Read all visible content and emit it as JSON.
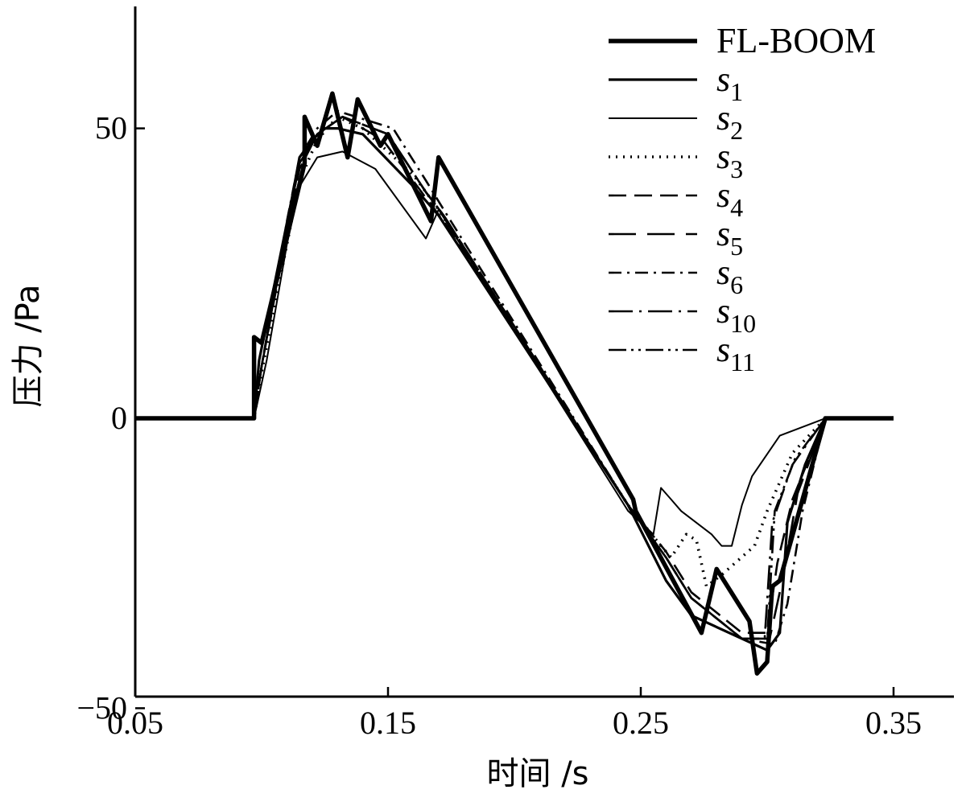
{
  "chart_data": {
    "type": "line",
    "title": "",
    "xlabel": "时间 /s",
    "ylabel": "压力 /Pa",
    "xlim": [
      0.05,
      0.35
    ],
    "ylim": [
      -50,
      70
    ],
    "xticks": [
      0.05,
      0.15,
      0.25,
      0.35
    ],
    "xtick_labels": [
      "0.05",
      "0.15",
      "0.25",
      "0.35"
    ],
    "yticks": [
      -50,
      0,
      50
    ],
    "ytick_labels": [
      "−50",
      "0",
      "50"
    ],
    "grid": false,
    "legend_position": "top-right",
    "series": [
      {
        "name": "FL-BOOM",
        "subscript": "",
        "style": "thick-solid",
        "points": [
          [
            0.05,
            0
          ],
          [
            0.097,
            0
          ],
          [
            0.097,
            14
          ],
          [
            0.1,
            13
          ],
          [
            0.117,
            44
          ],
          [
            0.117,
            52
          ],
          [
            0.122,
            47
          ],
          [
            0.128,
            56
          ],
          [
            0.134,
            45
          ],
          [
            0.138,
            55
          ],
          [
            0.147,
            47
          ],
          [
            0.15,
            49
          ],
          [
            0.167,
            34
          ],
          [
            0.17,
            45
          ],
          [
            0.247,
            -14
          ],
          [
            0.248,
            -16
          ],
          [
            0.274,
            -37
          ],
          [
            0.28,
            -26
          ],
          [
            0.293,
            -35
          ],
          [
            0.296,
            -44
          ],
          [
            0.3,
            -42
          ],
          [
            0.302,
            -29
          ],
          [
            0.305,
            -28
          ],
          [
            0.323,
            0
          ],
          [
            0.35,
            0
          ]
        ]
      },
      {
        "name": "s",
        "subscript": "1",
        "style": "medium-solid",
        "points": [
          [
            0.05,
            0
          ],
          [
            0.097,
            0
          ],
          [
            0.099,
            10
          ],
          [
            0.112,
            38
          ],
          [
            0.115,
            45
          ],
          [
            0.12,
            48
          ],
          [
            0.125,
            50
          ],
          [
            0.13,
            50
          ],
          [
            0.14,
            49
          ],
          [
            0.16,
            40
          ],
          [
            0.17,
            35
          ],
          [
            0.245,
            -15
          ],
          [
            0.26,
            -28
          ],
          [
            0.27,
            -34
          ],
          [
            0.29,
            -38
          ],
          [
            0.3,
            -40
          ],
          [
            0.305,
            -37
          ],
          [
            0.308,
            -18
          ],
          [
            0.315,
            -8
          ],
          [
            0.323,
            0
          ],
          [
            0.35,
            0
          ]
        ]
      },
      {
        "name": "s",
        "subscript": "2",
        "style": "thin-solid",
        "points": [
          [
            0.05,
            0
          ],
          [
            0.097,
            0
          ],
          [
            0.102,
            10
          ],
          [
            0.11,
            30
          ],
          [
            0.115,
            40
          ],
          [
            0.122,
            45
          ],
          [
            0.132,
            46
          ],
          [
            0.145,
            43
          ],
          [
            0.165,
            31
          ],
          [
            0.17,
            36
          ],
          [
            0.245,
            -16
          ],
          [
            0.255,
            -20
          ],
          [
            0.258,
            -12
          ],
          [
            0.262,
            -14
          ],
          [
            0.266,
            -16
          ],
          [
            0.278,
            -20
          ],
          [
            0.282,
            -22
          ],
          [
            0.286,
            -22
          ],
          [
            0.29,
            -15
          ],
          [
            0.294,
            -10
          ],
          [
            0.305,
            -3
          ],
          [
            0.323,
            0
          ],
          [
            0.35,
            0
          ]
        ]
      },
      {
        "name": "s",
        "subscript": "3",
        "style": "dotted",
        "points": [
          [
            0.05,
            0
          ],
          [
            0.097,
            0
          ],
          [
            0.1,
            8
          ],
          [
            0.11,
            30
          ],
          [
            0.115,
            41
          ],
          [
            0.122,
            48
          ],
          [
            0.13,
            52
          ],
          [
            0.14,
            50
          ],
          [
            0.16,
            42
          ],
          [
            0.17,
            36
          ],
          [
            0.245,
            -15
          ],
          [
            0.258,
            -22
          ],
          [
            0.262,
            -24
          ],
          [
            0.268,
            -20
          ],
          [
            0.272,
            -21
          ],
          [
            0.276,
            -29
          ],
          [
            0.282,
            -27
          ],
          [
            0.295,
            -22
          ],
          [
            0.3,
            -16
          ],
          [
            0.31,
            -6
          ],
          [
            0.323,
            0
          ],
          [
            0.35,
            0
          ]
        ]
      },
      {
        "name": "s",
        "subscript": "4",
        "style": "dashed",
        "points": [
          [
            0.05,
            0
          ],
          [
            0.097,
            0
          ],
          [
            0.1,
            9
          ],
          [
            0.11,
            32
          ],
          [
            0.115,
            43
          ],
          [
            0.122,
            49
          ],
          [
            0.132,
            52
          ],
          [
            0.148,
            48
          ],
          [
            0.165,
            38
          ],
          [
            0.172,
            34
          ],
          [
            0.245,
            -15
          ],
          [
            0.26,
            -23
          ],
          [
            0.27,
            -30
          ],
          [
            0.29,
            -37
          ],
          [
            0.3,
            -37
          ],
          [
            0.304,
            -25
          ],
          [
            0.31,
            -14
          ],
          [
            0.323,
            0
          ],
          [
            0.35,
            0
          ]
        ]
      },
      {
        "name": "s",
        "subscript": "5",
        "style": "long-dash",
        "points": [
          [
            0.05,
            0
          ],
          [
            0.097,
            0
          ],
          [
            0.1,
            9
          ],
          [
            0.11,
            33
          ],
          [
            0.115,
            44
          ],
          [
            0.122,
            49
          ],
          [
            0.132,
            52
          ],
          [
            0.15,
            49
          ],
          [
            0.165,
            39
          ],
          [
            0.172,
            35
          ],
          [
            0.245,
            -15
          ],
          [
            0.26,
            -24
          ],
          [
            0.27,
            -31
          ],
          [
            0.29,
            -38
          ],
          [
            0.301,
            -38
          ],
          [
            0.306,
            -28
          ],
          [
            0.312,
            -13
          ],
          [
            0.323,
            0
          ],
          [
            0.35,
            0
          ]
        ]
      },
      {
        "name": "s",
        "subscript": "6",
        "style": "dash-dot",
        "points": [
          [
            0.05,
            0
          ],
          [
            0.097,
            0
          ],
          [
            0.1,
            9
          ],
          [
            0.11,
            34
          ],
          [
            0.115,
            45
          ],
          [
            0.122,
            50
          ],
          [
            0.13,
            53
          ],
          [
            0.152,
            50
          ],
          [
            0.165,
            41
          ],
          [
            0.172,
            36
          ],
          [
            0.245,
            -15
          ],
          [
            0.26,
            -24
          ],
          [
            0.27,
            -31
          ],
          [
            0.29,
            -38
          ],
          [
            0.303,
            -39
          ],
          [
            0.308,
            -32
          ],
          [
            0.314,
            -16
          ],
          [
            0.323,
            0
          ],
          [
            0.35,
            0
          ]
        ]
      },
      {
        "name": "s",
        "subscript": "10",
        "style": "long-dash-dot",
        "points": [
          [
            0.05,
            0
          ],
          [
            0.097,
            0
          ],
          [
            0.1,
            9
          ],
          [
            0.11,
            33
          ],
          [
            0.115,
            44
          ],
          [
            0.122,
            49
          ],
          [
            0.132,
            52
          ],
          [
            0.15,
            49
          ],
          [
            0.165,
            39
          ],
          [
            0.172,
            35
          ],
          [
            0.245,
            -15
          ],
          [
            0.26,
            -24
          ],
          [
            0.27,
            -31
          ],
          [
            0.29,
            -38
          ],
          [
            0.299,
            -38
          ],
          [
            0.302,
            -18
          ],
          [
            0.31,
            -8
          ],
          [
            0.323,
            0
          ],
          [
            0.35,
            0
          ]
        ]
      },
      {
        "name": "s",
        "subscript": "11",
        "style": "dash-dot-dot",
        "points": [
          [
            0.05,
            0
          ],
          [
            0.097,
            0
          ],
          [
            0.1,
            9
          ],
          [
            0.11,
            33
          ],
          [
            0.115,
            44
          ],
          [
            0.122,
            49
          ],
          [
            0.132,
            52
          ],
          [
            0.15,
            49
          ],
          [
            0.165,
            39
          ],
          [
            0.172,
            35
          ],
          [
            0.245,
            -15
          ],
          [
            0.26,
            -24
          ],
          [
            0.27,
            -31
          ],
          [
            0.29,
            -38
          ],
          [
            0.3,
            -38
          ],
          [
            0.303,
            -16
          ],
          [
            0.311,
            -7
          ],
          [
            0.323,
            0
          ],
          [
            0.35,
            0
          ]
        ]
      }
    ]
  }
}
